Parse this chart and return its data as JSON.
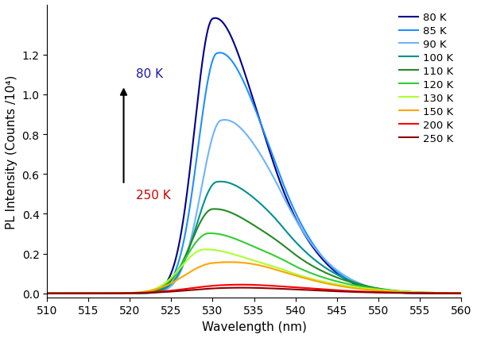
{
  "temperatures": [
    80,
    85,
    90,
    100,
    110,
    120,
    130,
    150,
    200,
    250
  ],
  "colors": [
    "#00008B",
    "#1E90FF",
    "#6EB4FF",
    "#009090",
    "#228B22",
    "#32CD32",
    "#ADFF2F",
    "#FFA500",
    "#FF0000",
    "#8B0000"
  ],
  "peak_wavelengths": [
    530.0,
    530.5,
    531.0,
    530.5,
    530.0,
    529.5,
    529.0,
    530.0,
    531.0,
    531.0
  ],
  "peak_heights": [
    1.35,
    1.18,
    0.85,
    0.55,
    0.42,
    0.3,
    0.22,
    0.14,
    0.028,
    0.018
  ],
  "peak_widths_left": [
    2.2,
    2.3,
    2.4,
    2.5,
    2.6,
    2.7,
    2.8,
    3.5,
    4.5,
    4.5
  ],
  "peak_widths_right": [
    4.5,
    4.8,
    5.2,
    5.5,
    5.8,
    6.0,
    6.2,
    7.0,
    8.0,
    8.0
  ],
  "shoulder_heights": [
    0.3,
    0.26,
    0.19,
    0.14,
    0.1,
    0.072,
    0.052,
    0.042,
    0.018,
    0.012
  ],
  "shoulder_wavelengths": [
    537.5,
    538.0,
    538.5,
    538.5,
    539.0,
    539.0,
    539.0,
    537.0,
    535.0,
    535.0
  ],
  "shoulder_widths_left": [
    3.5,
    3.5,
    3.5,
    3.5,
    3.5,
    3.5,
    3.5,
    4.5,
    5.0,
    5.0
  ],
  "shoulder_widths_right": [
    5.0,
    5.0,
    5.5,
    6.0,
    6.5,
    7.0,
    7.5,
    8.0,
    9.0,
    9.0
  ],
  "onset_wavelength": 517.0,
  "onset_sharpness": 1.2,
  "legend_labels": [
    "80 K",
    "85 K",
    "90 K",
    "100 K",
    "110 K",
    "120 K",
    "130 K",
    "150 K",
    "200 K",
    "250 K"
  ],
  "xlabel": "Wavelength (nm)",
  "ylabel": "PL Intensity (Counts /10⁴)",
  "xlim": [
    510,
    560
  ],
  "ylim": [
    -0.02,
    1.45
  ],
  "yticks": [
    0.0,
    0.2,
    0.4,
    0.6,
    0.8,
    1.0,
    1.2
  ],
  "xticks": [
    510,
    515,
    520,
    525,
    530,
    535,
    540,
    545,
    550,
    555,
    560
  ],
  "annotation_80K_text": "80 K",
  "annotation_250K_text": "250 K",
  "annotation_80K_color": "#1a1aaa",
  "annotation_250K_color": "#CC0000",
  "figsize": [
    6.0,
    4.27
  ],
  "dpi": 100
}
